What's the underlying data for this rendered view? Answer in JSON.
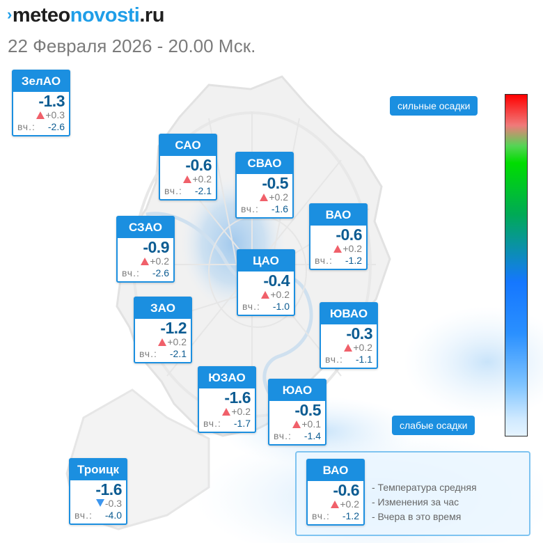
{
  "header": {
    "brand_prefix": "meteo",
    "brand_mid": "novosti",
    "brand_suffix": ".ru",
    "datetime": "22 Февраля 2026 - 20.00 Мск."
  },
  "districts": [
    {
      "name": "ЗелАО",
      "temp": "-1.3",
      "trend": "up",
      "delta": "+0.3",
      "yesterday_label": "вч.:",
      "yesterday": "-2.6"
    },
    {
      "name": "САО",
      "temp": "-0.6",
      "trend": "up",
      "delta": "+0.2",
      "yesterday_label": "вч.:",
      "yesterday": "-2.1"
    },
    {
      "name": "СВАО",
      "temp": "-0.5",
      "trend": "up",
      "delta": "+0.2",
      "yesterday_label": "вч.:",
      "yesterday": "-1.6"
    },
    {
      "name": "ВАО",
      "temp": "-0.6",
      "trend": "up",
      "delta": "+0.2",
      "yesterday_label": "вч.:",
      "yesterday": "-1.2"
    },
    {
      "name": "СЗАО",
      "temp": "-0.9",
      "trend": "up",
      "delta": "+0.2",
      "yesterday_label": "вч.:",
      "yesterday": "-2.6"
    },
    {
      "name": "ЦАО",
      "temp": "-0.4",
      "trend": "up",
      "delta": "+0.2",
      "yesterday_label": "вч.:",
      "yesterday": "-1.0"
    },
    {
      "name": "ЗАО",
      "temp": "-1.2",
      "trend": "up",
      "delta": "+0.2",
      "yesterday_label": "вч.:",
      "yesterday": "-2.1"
    },
    {
      "name": "ЮВАО",
      "temp": "-0.3",
      "trend": "up",
      "delta": "+0.2",
      "yesterday_label": "вч.:",
      "yesterday": "-1.1"
    },
    {
      "name": "ЮЗАО",
      "temp": "-1.6",
      "trend": "up",
      "delta": "+0.2",
      "yesterday_label": "вч.:",
      "yesterday": "-1.7"
    },
    {
      "name": "ЮАО",
      "temp": "-0.5",
      "trend": "up",
      "delta": "+0.1",
      "yesterday_label": "вч.:",
      "yesterday": "-1.4"
    },
    {
      "name": "Троицк",
      "temp": "-1.6",
      "trend": "down",
      "delta": "-0.3",
      "yesterday_label": "вч.:",
      "yesterday": "-4.0"
    }
  ],
  "precipitation_legend": {
    "top_label": "сильные осадки",
    "bottom_label": "слабые осадки",
    "colors": [
      "#ff0000",
      "#00dd00",
      "#1577ff",
      "#e6f4ff"
    ]
  },
  "legend_example": {
    "name": "ВАО",
    "temp": "-0.6",
    "trend": "up",
    "delta": "+0.2",
    "yesterday_label": "вч.:",
    "yesterday": "-1.2",
    "line1": "- Температура средняя",
    "line2": "- Изменения за час",
    "line3": "- Вчера в это время"
  },
  "colors": {
    "accent": "#1b8fe0",
    "temperature": "#0d5c92",
    "rise": "#f0606a",
    "fall": "#3d96ee"
  }
}
